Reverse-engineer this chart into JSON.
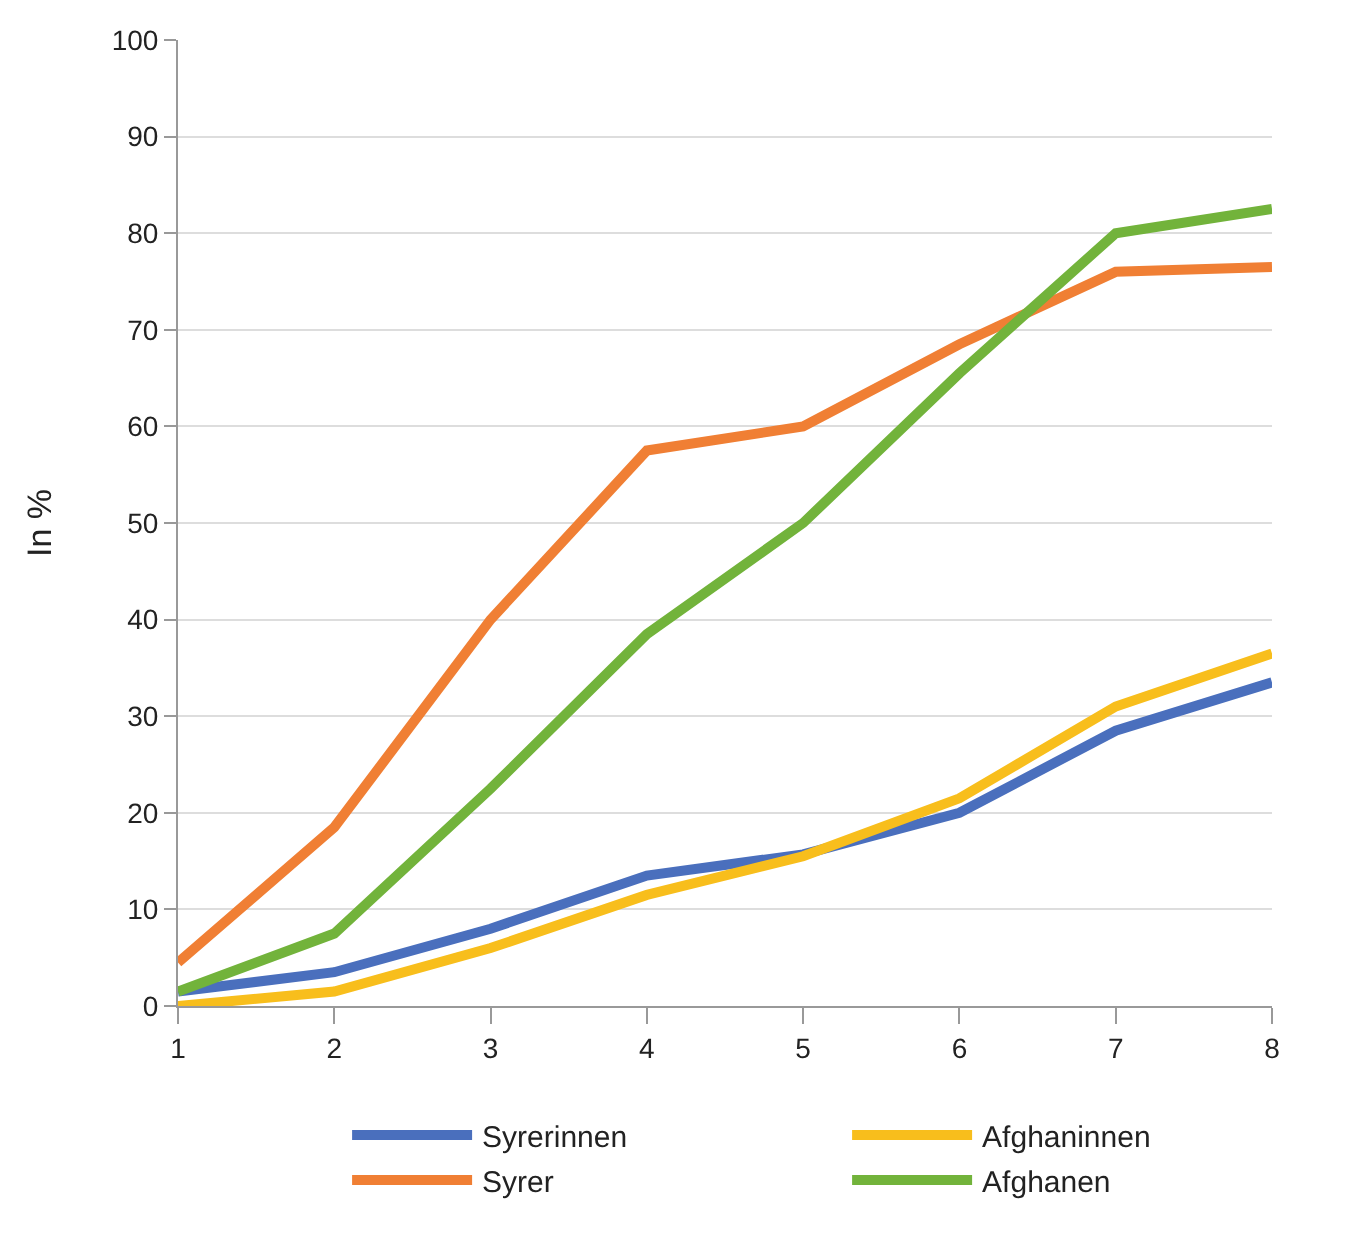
{
  "chart_data": {
    "type": "line",
    "ylabel": "In %",
    "x": [
      1,
      2,
      3,
      4,
      5,
      6,
      7,
      8
    ],
    "series": [
      {
        "name": "Syrerinnen",
        "color": "#4a6fbd",
        "values": [
          1.5,
          3.5,
          8,
          13.5,
          15.7,
          20,
          28.5,
          33.5
        ]
      },
      {
        "name": "Afghaninnen",
        "color": "#f8be1c",
        "values": [
          0,
          1.5,
          6,
          11.5,
          15.5,
          21.5,
          31,
          36.5
        ]
      },
      {
        "name": "Syrer",
        "color": "#f07f34",
        "values": [
          4.5,
          18.5,
          40,
          57.5,
          60,
          68.5,
          76,
          76.5
        ]
      },
      {
        "name": "Afghanen",
        "color": "#72b33b",
        "values": [
          1.5,
          7.5,
          22.5,
          38.5,
          50,
          65.5,
          80,
          82.5
        ]
      }
    ],
    "xlim": [
      1,
      8
    ],
    "xticks": [
      1,
      2,
      3,
      4,
      5,
      6,
      7,
      8
    ],
    "ylim": [
      0,
      100
    ],
    "yticks": [
      0,
      10,
      20,
      30,
      40,
      50,
      60,
      70,
      80,
      90,
      100
    ],
    "grid": "y",
    "legend": "bottom",
    "marker": "none",
    "line_style": "solid"
  }
}
